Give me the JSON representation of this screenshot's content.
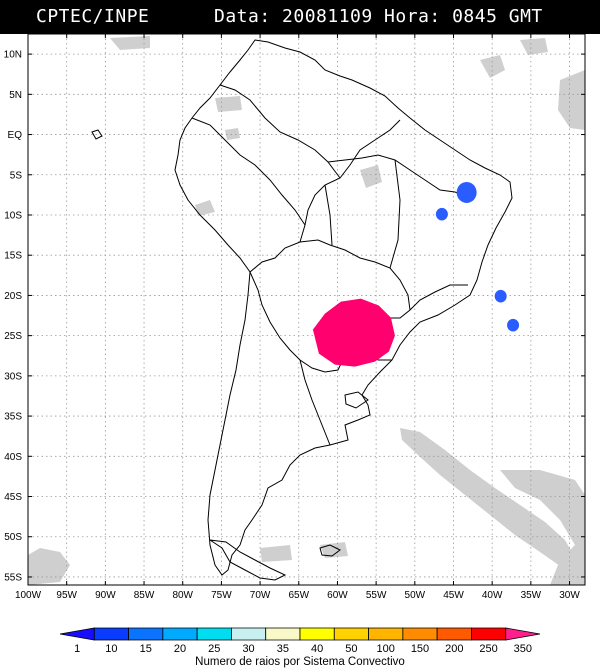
{
  "header": {
    "source": "CPTEC/INPE",
    "info": "Data: 20081109 Hora: 0845 GMT"
  },
  "map": {
    "lat_labels": [
      "10N",
      "5N",
      "EQ",
      "5S",
      "10S",
      "15S",
      "20S",
      "25S",
      "30S",
      "35S",
      "40S",
      "45S",
      "50S",
      "55S"
    ],
    "lon_labels": [
      "100W",
      "95W",
      "90W",
      "85W",
      "80W",
      "75W",
      "70W",
      "65W",
      "60W",
      "55W",
      "50W",
      "45W",
      "40W",
      "35W",
      "30W"
    ],
    "lat_values": [
      10,
      5,
      0,
      -5,
      -10,
      -15,
      -20,
      -25,
      -30,
      -35,
      -40,
      -45,
      -50,
      -55
    ],
    "lon_values": [
      -100,
      -95,
      -90,
      -85,
      -80,
      -75,
      -70,
      -65,
      -60,
      -55,
      -50,
      -45,
      -40,
      -35,
      -30
    ],
    "extent": {
      "lon_min": -100,
      "lon_max": -28,
      "lat_min": -56,
      "lat_max": 12.5
    },
    "gridlines": true,
    "colors": {
      "land_outline": "#000000",
      "cloud_gray": "#c8c8c8",
      "gridline": "#9a9a9a"
    },
    "lightning_systems": [
      {
        "name": "",
        "lon": -58,
        "lat": -25,
        "rays_class": "350",
        "color": "#ff006e"
      },
      {
        "name": "",
        "lon": -43.3,
        "lat": -7.2,
        "rays_class": "10",
        "color": "#2a5cff"
      },
      {
        "name": "",
        "lon": -46.5,
        "lat": -9.9,
        "rays_class": "10",
        "color": "#2a5cff"
      },
      {
        "name": "",
        "lon": -38.9,
        "lat": -20.1,
        "rays_class": "10",
        "color": "#2a5cff"
      },
      {
        "name": "",
        "lon": -37.3,
        "lat": -23.7,
        "rays_class": "10",
        "color": "#2a5cff"
      }
    ]
  },
  "colorbar": {
    "title": "Numero de raios por Sistema Convectivo",
    "labels": [
      "1",
      "10",
      "15",
      "20",
      "25",
      "30",
      "35",
      "40",
      "50",
      "100",
      "150",
      "200",
      "250",
      "350"
    ],
    "colors": [
      "#1a0dff",
      "#0a3cff",
      "#0a73ff",
      "#00aaff",
      "#00dcf0",
      "#c8f0f0",
      "#f8f8c8",
      "#ffff00",
      "#ffd200",
      "#ffb400",
      "#ff8c00",
      "#ff5a00",
      "#ff0000",
      "#ff1e8c"
    ]
  }
}
